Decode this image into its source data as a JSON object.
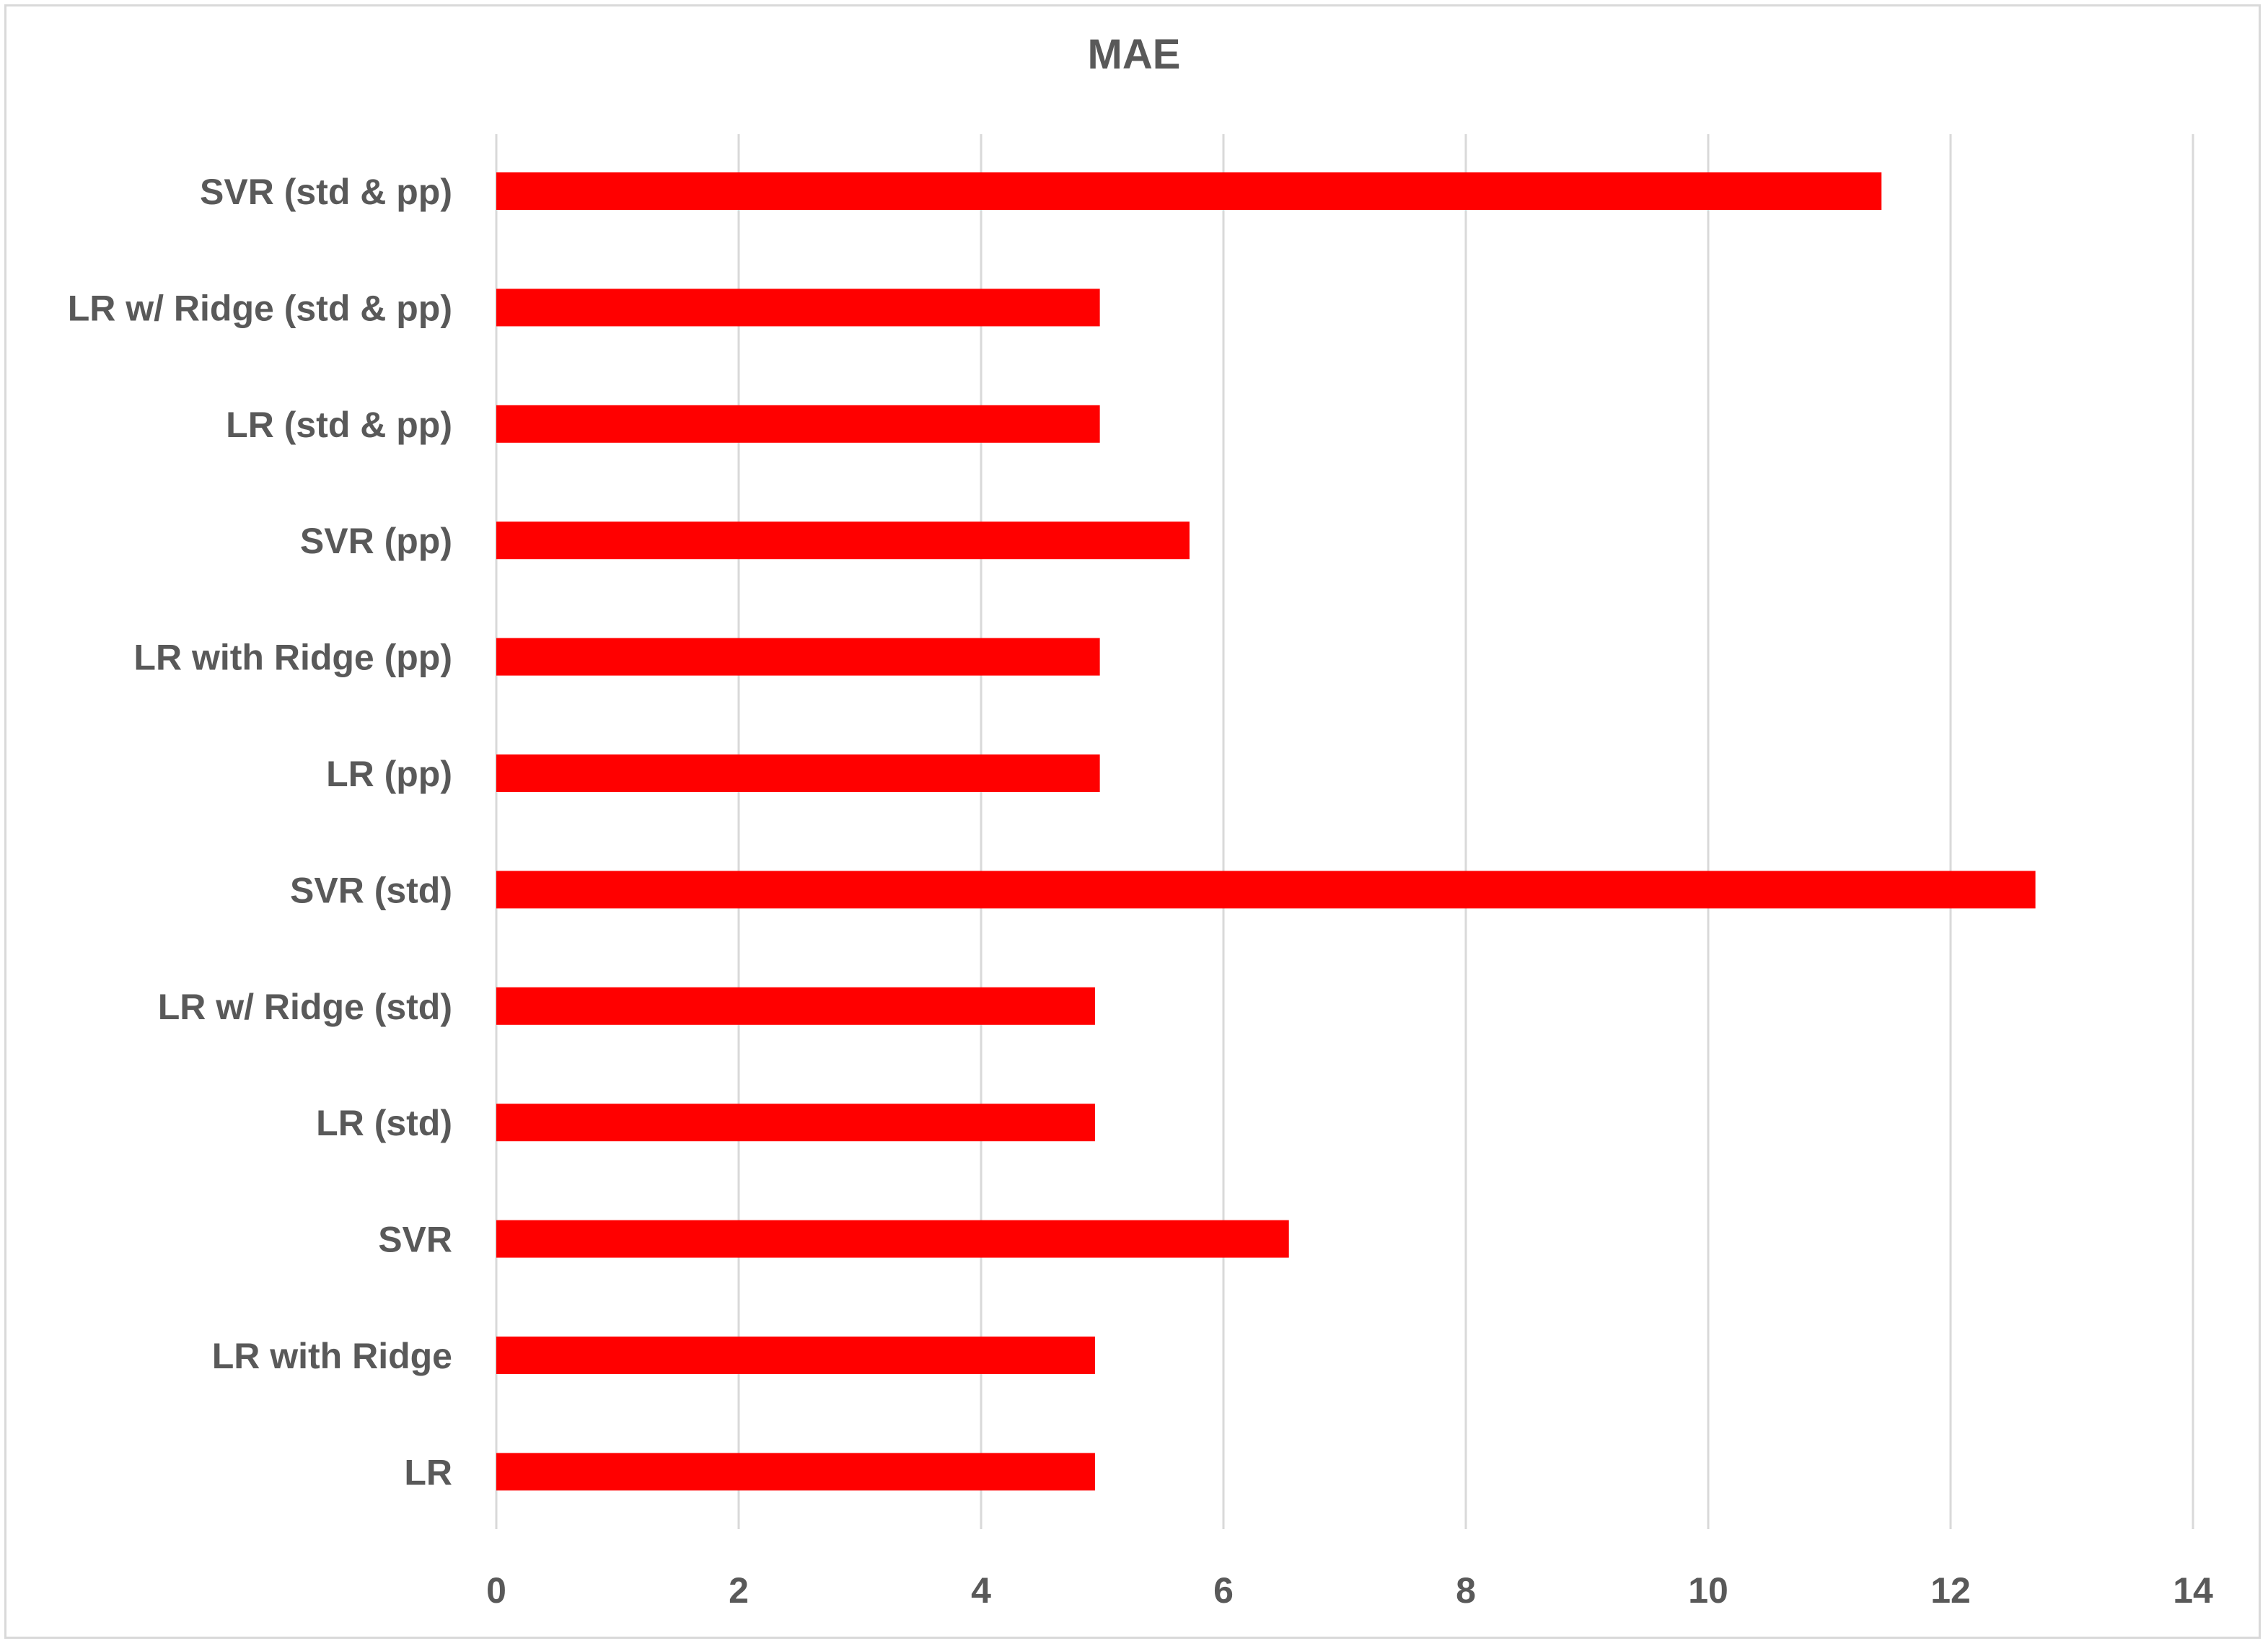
{
  "chart_data": {
    "type": "bar",
    "orientation": "horizontal",
    "title": "MAE",
    "xlabel": "",
    "ylabel": "",
    "categories": [
      "SVR (std & pp)",
      "LR w/ Ridge (std & pp)",
      "LR (std & pp)",
      "SVR (pp)",
      "LR with Ridge  (pp)",
      "LR (pp)",
      "SVR (std)",
      "LR w/ Ridge (std)",
      "LR (std)",
      "SVR",
      "LR with Ridge",
      "LR"
    ],
    "values": [
      11.43,
      4.98,
      4.98,
      5.72,
      4.98,
      4.98,
      12.7,
      4.94,
      4.94,
      6.54,
      4.94,
      4.94
    ],
    "xlim": [
      0,
      14
    ],
    "xticks": [
      0,
      2,
      4,
      6,
      8,
      10,
      12,
      14
    ],
    "grid": true,
    "legend": "none",
    "bar_color": "#ff0000",
    "grid_color": "#d9d9d9",
    "text_color": "#595959"
  }
}
